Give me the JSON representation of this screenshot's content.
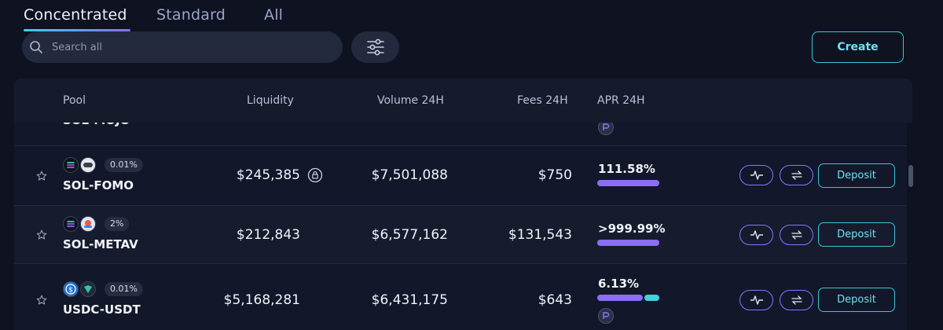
{
  "tabs": [
    "Concentrated",
    "Standard",
    "All"
  ],
  "search": {
    "placeholder": "Search all"
  },
  "create_label": "Create",
  "columns": [
    "Pool",
    "Liquidity",
    "Volume 24H",
    "Fees 24H",
    "APR 24H"
  ],
  "partial_row": {
    "pair": "SOL-MOJO"
  },
  "rows": [
    {
      "pair": "SOL-FOMO",
      "fee_tier": "0.01%",
      "liquidity": "$245,385",
      "volume_24h": "$7,501,088",
      "fees_24h": "$750",
      "apr_24h": "111.58%",
      "apr_bar_fraction": 1.0,
      "action_label": "Deposit"
    },
    {
      "pair": "SOL-METAV",
      "fee_tier": "2%",
      "liquidity": "$212,843",
      "volume_24h": "$6,577,162",
      "fees_24h": "$131,543",
      "apr_24h": ">999.99%",
      "apr_bar_fraction": 1.0,
      "action_label": "Deposit"
    },
    {
      "pair": "USDC-USDT",
      "fee_tier": "0.01%",
      "liquidity": "$5,168,281",
      "volume_24h": "$6,431,175",
      "fees_24h": "$643",
      "apr_24h": "6.13%",
      "apr_bar_fraction": 0.73,
      "action_label": "Deposit"
    }
  ],
  "colors": {
    "accent_cyan": "#3cc6d6",
    "accent_purple": "#8b74ff",
    "apr_bar_purple": "#8b6ef5",
    "apr_bar_teal": "#44cfd9"
  }
}
